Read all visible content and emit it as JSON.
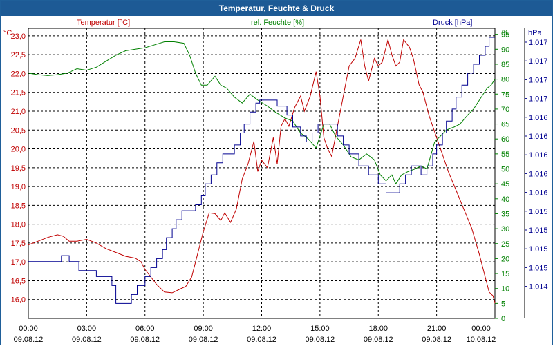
{
  "window": {
    "title": "Temperatur, Feuchte & Druck"
  },
  "colors": {
    "temperature": "#c00000",
    "humidity": "#008000",
    "pressure": "#000090",
    "grid": "#000000",
    "title_bg": "#1d5a95"
  },
  "chart_data": {
    "type": "line",
    "title": "Temperatur, Feuchte & Druck",
    "x_labels": [
      {
        "time": "00:00",
        "date": "09.08.12"
      },
      {
        "time": "03:00",
        "date": "09.08.12"
      },
      {
        "time": "06:00",
        "date": "09.08.12"
      },
      {
        "time": "09:00",
        "date": "09.08.12"
      },
      {
        "time": "12:00",
        "date": "09.08.12"
      },
      {
        "time": "15:00",
        "date": "09.08.12"
      },
      {
        "time": "18:00",
        "date": "09.08.12"
      },
      {
        "time": "21:00",
        "date": "09.08.12"
      },
      {
        "time": "00:00",
        "date": "10.08.12"
      }
    ],
    "x_range_hours": [
      0,
      24
    ],
    "axes": {
      "temperature": {
        "label": "Temperatur [°C]",
        "unit": "°C",
        "range": [
          15.5,
          23.2
        ],
        "ticks": [
          "23,0",
          "22,5",
          "22,0",
          "21,5",
          "21,0",
          "20,5",
          "20,0",
          "19,5",
          "19,0",
          "18,5",
          "18,0",
          "17,5",
          "17,0",
          "16,5",
          "16,0"
        ],
        "tick_values": [
          23.0,
          22.5,
          22.0,
          21.5,
          21.0,
          20.5,
          20.0,
          19.5,
          19.0,
          18.5,
          18.0,
          17.5,
          17.0,
          16.5,
          16.0
        ]
      },
      "humidity": {
        "label": "rel. Feuchte [%]",
        "unit": "%",
        "range": [
          0,
          97
        ],
        "ticks": [
          "95",
          "90",
          "85",
          "80",
          "75",
          "70",
          "65",
          "60",
          "55",
          "50",
          "45",
          "40",
          "35",
          "30",
          "25",
          "20",
          "15",
          "10",
          "5",
          "0"
        ],
        "tick_values": [
          95,
          90,
          85,
          80,
          75,
          70,
          65,
          60,
          55,
          50,
          45,
          40,
          35,
          30,
          25,
          20,
          15,
          10,
          5,
          0
        ]
      },
      "pressure": {
        "label": "Druck [hPa]",
        "unit": "hPa",
        "ticks": [
          "1.017",
          "1.017",
          "1.017",
          "1.017",
          "1.016",
          "1.016",
          "1.016",
          "1.016",
          "1.016",
          "1.015",
          "1.015",
          "1.015",
          "1.015",
          "1.014"
        ]
      }
    },
    "series": [
      {
        "name": "Temperatur",
        "axis": "temperature",
        "points": [
          [
            0,
            17.45
          ],
          [
            0.5,
            17.55
          ],
          [
            1,
            17.65
          ],
          [
            1.5,
            17.72
          ],
          [
            1.8,
            17.68
          ],
          [
            2.1,
            17.55
          ],
          [
            2.5,
            17.55
          ],
          [
            3,
            17.6
          ],
          [
            3.5,
            17.5
          ],
          [
            4,
            17.35
          ],
          [
            4.5,
            17.25
          ],
          [
            5,
            17.15
          ],
          [
            5.5,
            17.1
          ],
          [
            5.8,
            17.0
          ],
          [
            6.0,
            16.8
          ],
          [
            6.3,
            16.6
          ],
          [
            6.6,
            16.4
          ],
          [
            7,
            16.2
          ],
          [
            7.4,
            16.18
          ],
          [
            7.8,
            16.28
          ],
          [
            8.1,
            16.35
          ],
          [
            8.4,
            16.6
          ],
          [
            8.7,
            17.2
          ],
          [
            9,
            17.8
          ],
          [
            9.3,
            18.3
          ],
          [
            9.6,
            18.28
          ],
          [
            9.9,
            18.1
          ],
          [
            10.1,
            18.3
          ],
          [
            10.4,
            18.05
          ],
          [
            10.7,
            18.4
          ],
          [
            11.0,
            19.2
          ],
          [
            11.3,
            19.6
          ],
          [
            11.6,
            20.2
          ],
          [
            11.8,
            19.4
          ],
          [
            12.0,
            19.7
          ],
          [
            12.3,
            19.5
          ],
          [
            12.6,
            20.3
          ],
          [
            12.8,
            19.6
          ],
          [
            13.0,
            20.6
          ],
          [
            13.2,
            20.8
          ],
          [
            13.4,
            20.6
          ],
          [
            13.7,
            21.1
          ],
          [
            14.0,
            21.4
          ],
          [
            14.2,
            21.0
          ],
          [
            14.5,
            21.4
          ],
          [
            14.8,
            22.05
          ],
          [
            15.0,
            21.4
          ],
          [
            15.2,
            20.3
          ],
          [
            15.4,
            20.0
          ],
          [
            15.6,
            19.8
          ],
          [
            15.9,
            20.6
          ],
          [
            16.2,
            21.4
          ],
          [
            16.5,
            22.2
          ],
          [
            16.8,
            22.4
          ],
          [
            17.1,
            22.9
          ],
          [
            17.3,
            22.2
          ],
          [
            17.5,
            21.8
          ],
          [
            17.8,
            22.4
          ],
          [
            18.0,
            22.2
          ],
          [
            18.2,
            22.3
          ],
          [
            18.5,
            22.9
          ],
          [
            18.7,
            22.5
          ],
          [
            18.9,
            22.2
          ],
          [
            19.1,
            22.3
          ],
          [
            19.3,
            22.9
          ],
          [
            19.6,
            22.7
          ],
          [
            19.8,
            22.4
          ],
          [
            20.1,
            21.7
          ],
          [
            20.3,
            21.5
          ],
          [
            20.6,
            20.9
          ],
          [
            20.8,
            20.6
          ],
          [
            21.2,
            20.0
          ],
          [
            21.6,
            19.4
          ],
          [
            22,
            18.9
          ],
          [
            22.4,
            18.4
          ],
          [
            22.8,
            17.9
          ],
          [
            23.2,
            17.2
          ],
          [
            23.5,
            16.6
          ],
          [
            23.7,
            16.2
          ],
          [
            23.9,
            16.1
          ],
          [
            24,
            15.9
          ]
        ]
      },
      {
        "name": "rel. Feuchte",
        "axis": "humidity",
        "points": [
          [
            0,
            82
          ],
          [
            0.5,
            81.5
          ],
          [
            1.0,
            81.2
          ],
          [
            1.5,
            81.5
          ],
          [
            2.0,
            82
          ],
          [
            2.5,
            83.5
          ],
          [
            3.0,
            83
          ],
          [
            3.5,
            84
          ],
          [
            4,
            86
          ],
          [
            4.5,
            88
          ],
          [
            5,
            89.5
          ],
          [
            5.5,
            90
          ],
          [
            6.0,
            90.5
          ],
          [
            6.5,
            91.5
          ],
          [
            7,
            92.5
          ],
          [
            7.5,
            92.5
          ],
          [
            8,
            92
          ],
          [
            8.3,
            88
          ],
          [
            8.6,
            82
          ],
          [
            8.9,
            78
          ],
          [
            9.2,
            78
          ],
          [
            9.6,
            81
          ],
          [
            9.9,
            78
          ],
          [
            10.2,
            77
          ],
          [
            10.6,
            74
          ],
          [
            11.0,
            72
          ],
          [
            11.4,
            75
          ],
          [
            11.8,
            73
          ],
          [
            12.3,
            71
          ],
          [
            12.7,
            69
          ],
          [
            13.2,
            67
          ],
          [
            13.6,
            66
          ],
          [
            14.0,
            62
          ],
          [
            14.4,
            60
          ],
          [
            14.8,
            57
          ],
          [
            15.2,
            65
          ],
          [
            15.5,
            65
          ],
          [
            15.8,
            61
          ],
          [
            16.2,
            58
          ],
          [
            16.6,
            54
          ],
          [
            17.0,
            53
          ],
          [
            17.4,
            55
          ],
          [
            17.8,
            53
          ],
          [
            18.1,
            48
          ],
          [
            18.4,
            46
          ],
          [
            18.7,
            48
          ],
          [
            18.9,
            45
          ],
          [
            19.2,
            48
          ],
          [
            19.5,
            49
          ],
          [
            19.9,
            50
          ],
          [
            20.2,
            51
          ],
          [
            20.5,
            50
          ],
          [
            20.9,
            59
          ],
          [
            21.2,
            61
          ],
          [
            21.5,
            63
          ],
          [
            21.9,
            64
          ],
          [
            22.2,
            65
          ],
          [
            22.6,
            68
          ],
          [
            22.9,
            70
          ],
          [
            23.2,
            73
          ],
          [
            23.6,
            77
          ],
          [
            23.8,
            78
          ],
          [
            24.0,
            80
          ]
        ]
      },
      {
        "name": "Druck",
        "axis": "pressure",
        "points_screen_units": [
          [
            0,
            19
          ],
          [
            1.7,
            19
          ],
          [
            1.7,
            21
          ],
          [
            2.1,
            21
          ],
          [
            2.1,
            19
          ],
          [
            2.6,
            19
          ],
          [
            2.6,
            16
          ],
          [
            3.5,
            16
          ],
          [
            3.5,
            14
          ],
          [
            4.3,
            14
          ],
          [
            4.3,
            11
          ],
          [
            4.5,
            11
          ],
          [
            4.5,
            5
          ],
          [
            5.3,
            5
          ],
          [
            5.3,
            8
          ],
          [
            5.6,
            8
          ],
          [
            5.6,
            11
          ],
          [
            6.0,
            11
          ],
          [
            6.0,
            14
          ],
          [
            6.3,
            14
          ],
          [
            6.3,
            17
          ],
          [
            6.6,
            17
          ],
          [
            6.6,
            20
          ],
          [
            6.9,
            20
          ],
          [
            6.9,
            23
          ],
          [
            7.1,
            23
          ],
          [
            7.1,
            27
          ],
          [
            7.4,
            27
          ],
          [
            7.4,
            30
          ],
          [
            7.6,
            30
          ],
          [
            7.6,
            33
          ],
          [
            7.9,
            33
          ],
          [
            7.9,
            36
          ],
          [
            8.6,
            36
          ],
          [
            8.6,
            38
          ],
          [
            8.9,
            38
          ],
          [
            8.9,
            41
          ],
          [
            9.1,
            41
          ],
          [
            9.1,
            45
          ],
          [
            9.4,
            45
          ],
          [
            9.4,
            48
          ],
          [
            9.7,
            48
          ],
          [
            9.7,
            52
          ],
          [
            10.0,
            52
          ],
          [
            10.0,
            55
          ],
          [
            10.6,
            55
          ],
          [
            10.6,
            58
          ],
          [
            10.9,
            58
          ],
          [
            10.9,
            62
          ],
          [
            11.1,
            62
          ],
          [
            11.1,
            65
          ],
          [
            11.4,
            65
          ],
          [
            11.4,
            69
          ],
          [
            11.7,
            69
          ],
          [
            11.7,
            72
          ],
          [
            11.9,
            72
          ],
          [
            11.9,
            73
          ],
          [
            12.8,
            73
          ],
          [
            12.8,
            71
          ],
          [
            13.3,
            71
          ],
          [
            13.3,
            68
          ],
          [
            13.6,
            68
          ],
          [
            13.6,
            64
          ],
          [
            14.0,
            64
          ],
          [
            14.0,
            61
          ],
          [
            14.3,
            61
          ],
          [
            14.3,
            59
          ],
          [
            14.6,
            59
          ],
          [
            14.6,
            62
          ],
          [
            14.9,
            62
          ],
          [
            14.9,
            65
          ],
          [
            15.9,
            65
          ],
          [
            15.9,
            61
          ],
          [
            16.2,
            61
          ],
          [
            16.2,
            58
          ],
          [
            16.5,
            58
          ],
          [
            16.5,
            55
          ],
          [
            17.0,
            55
          ],
          [
            17.0,
            51
          ],
          [
            17.5,
            51
          ],
          [
            17.5,
            48
          ],
          [
            18.0,
            48
          ],
          [
            18.0,
            45
          ],
          [
            18.4,
            45
          ],
          [
            18.4,
            42
          ],
          [
            19.1,
            42
          ],
          [
            19.1,
            45
          ],
          [
            19.4,
            45
          ],
          [
            19.4,
            48
          ],
          [
            19.7,
            48
          ],
          [
            19.7,
            51
          ],
          [
            20.2,
            51
          ],
          [
            20.2,
            48
          ],
          [
            20.5,
            48
          ],
          [
            20.5,
            51
          ],
          [
            20.8,
            51
          ],
          [
            20.8,
            55
          ],
          [
            21.0,
            55
          ],
          [
            21.0,
            58
          ],
          [
            21.3,
            58
          ],
          [
            21.3,
            62
          ],
          [
            21.5,
            62
          ],
          [
            21.5,
            66
          ],
          [
            21.8,
            66
          ],
          [
            21.8,
            70
          ],
          [
            22.0,
            70
          ],
          [
            22.0,
            74
          ],
          [
            22.3,
            74
          ],
          [
            22.3,
            78
          ],
          [
            22.6,
            78
          ],
          [
            22.6,
            82
          ],
          [
            22.9,
            82
          ],
          [
            22.9,
            85
          ],
          [
            23.2,
            85
          ],
          [
            23.2,
            88
          ],
          [
            23.5,
            88
          ],
          [
            23.5,
            91
          ],
          [
            23.7,
            91
          ],
          [
            23.7,
            94
          ],
          [
            24.0,
            94
          ]
        ]
      }
    ]
  }
}
